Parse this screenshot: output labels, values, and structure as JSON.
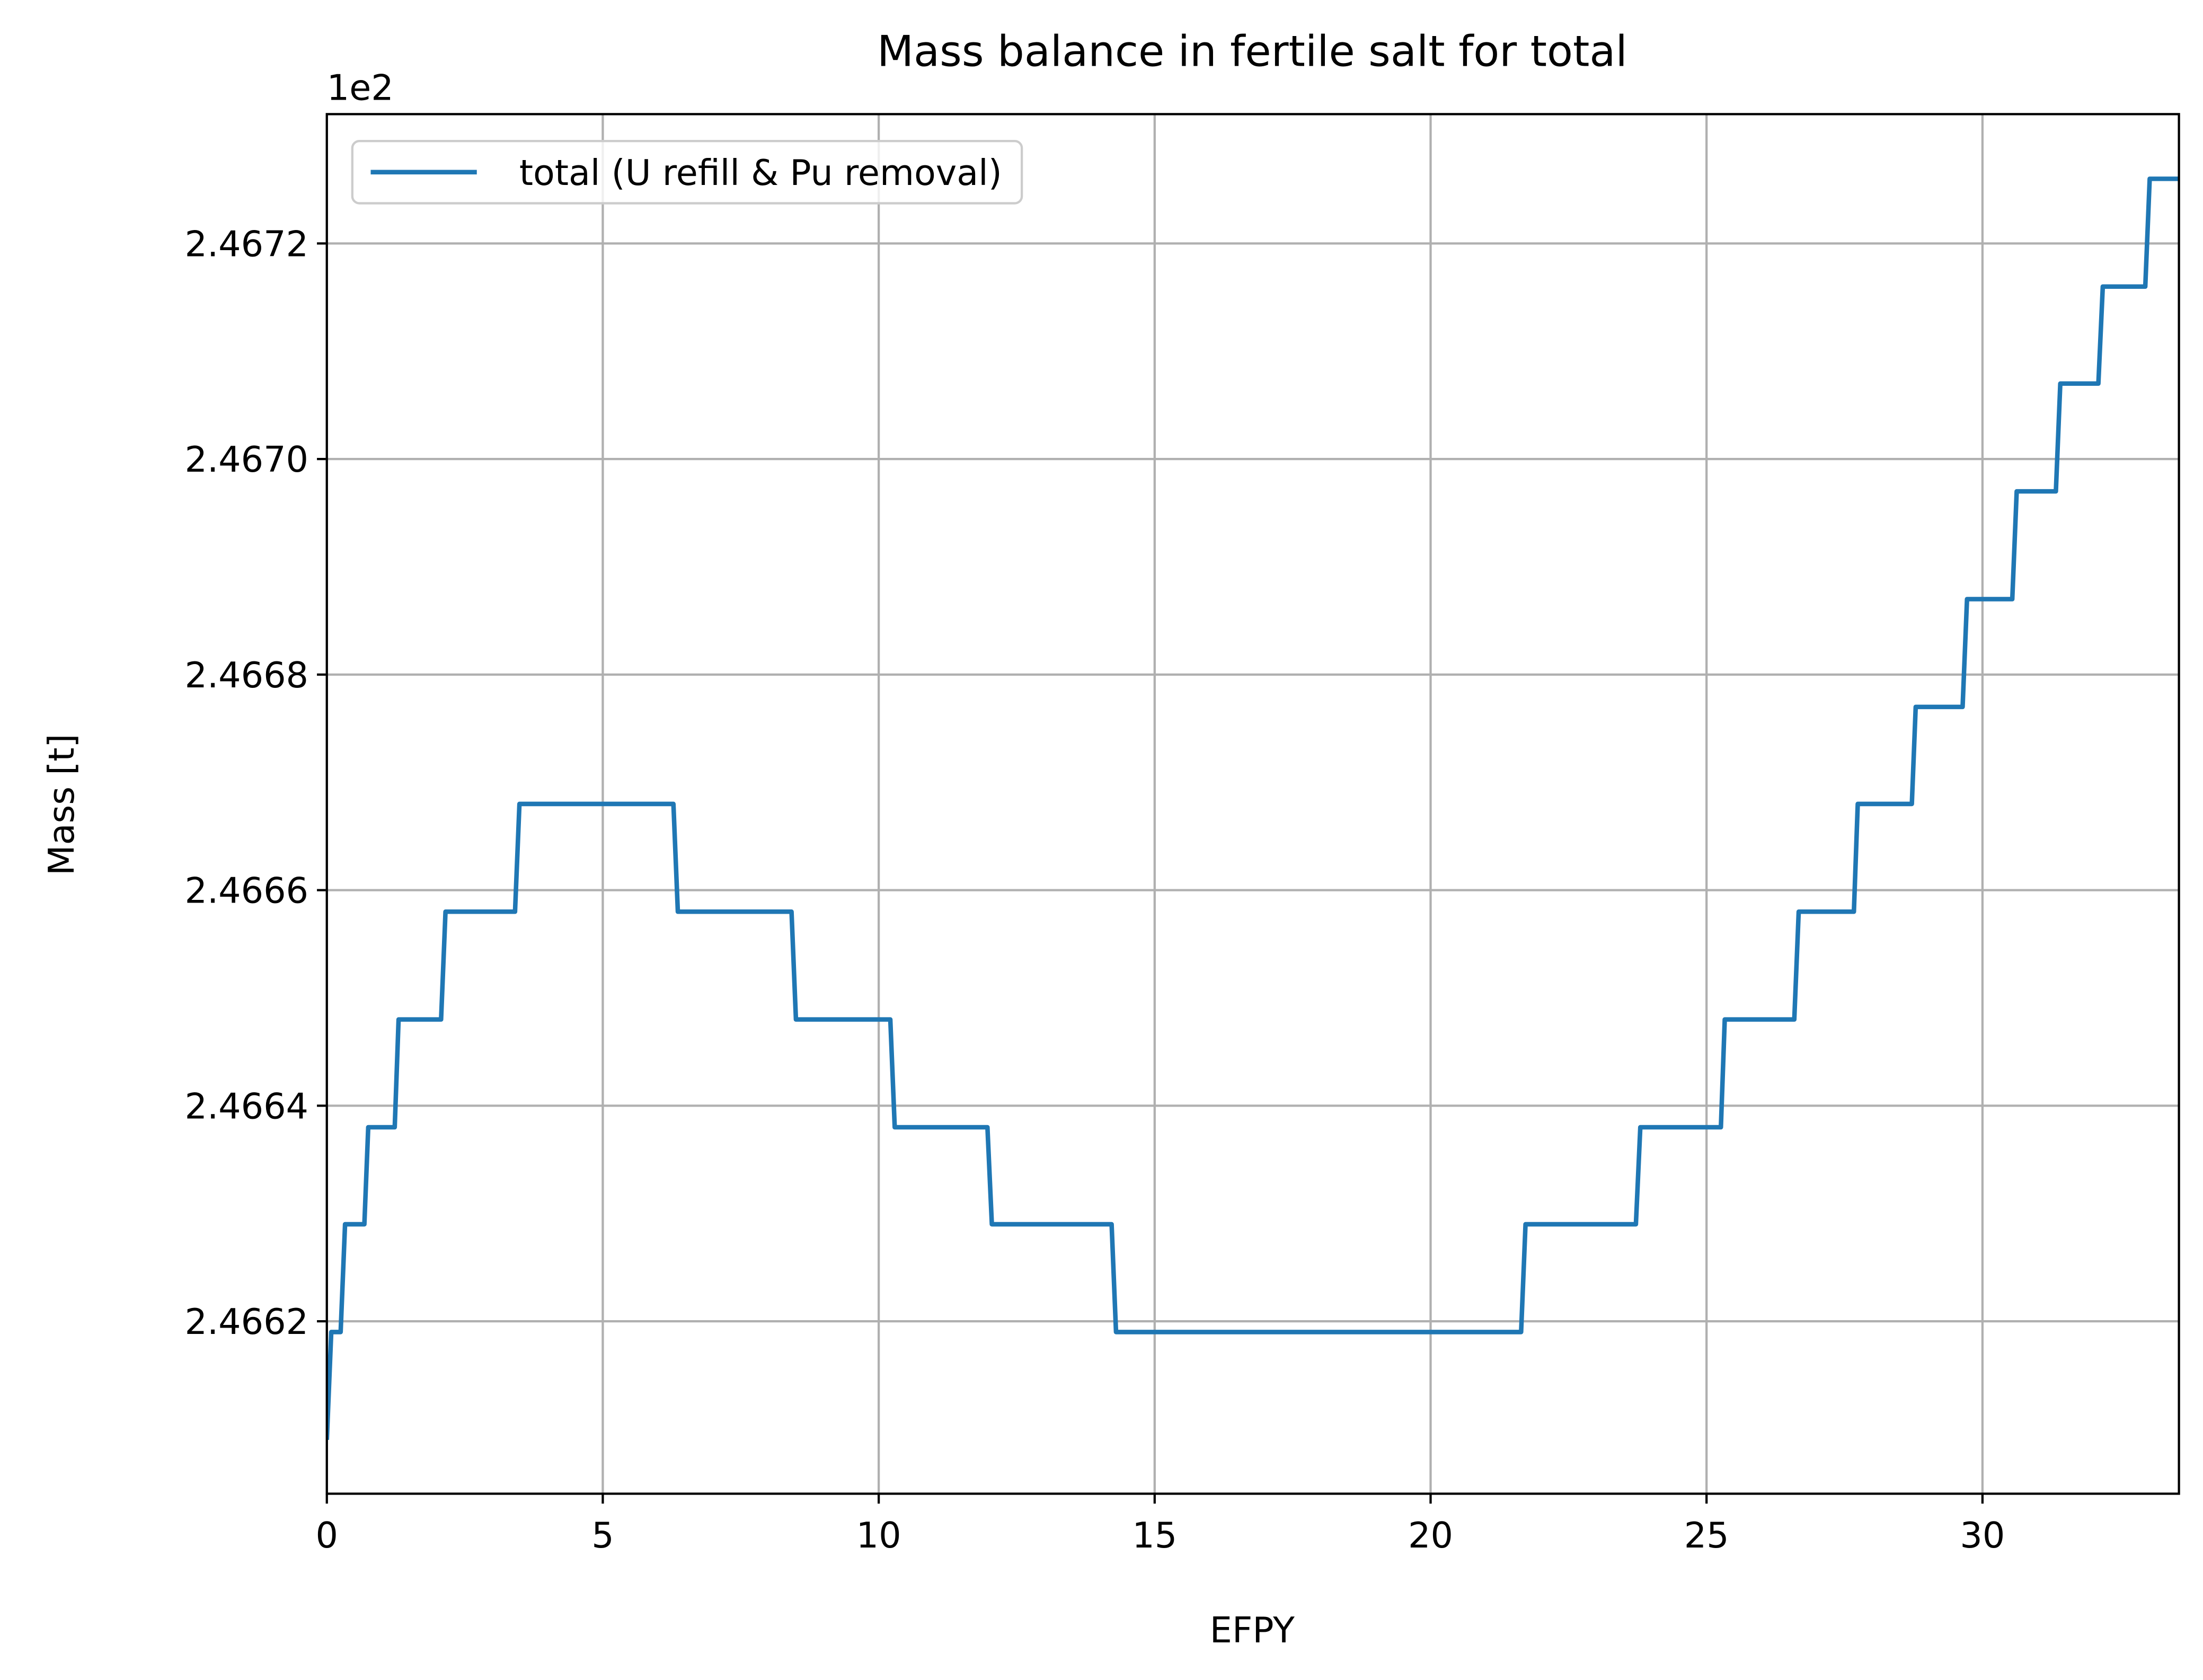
{
  "chart_data": {
    "type": "line",
    "title": "Mass balance in fertile salt for total",
    "x_label": "EFPY",
    "y_label": "Mass [t]",
    "y_offset_label": "1e2",
    "xlim": [
      0,
      33.56
    ],
    "ylim": [
      2.46604,
      2.46732
    ],
    "xticks": [
      0,
      5,
      10,
      15,
      20,
      25,
      30
    ],
    "yticks": [
      2.4662,
      2.4664,
      2.4666,
      2.4668,
      2.467,
      {
        "value": 2.467,
        "label": "2.4670"
      },
      2.4672
    ],
    "grid": true,
    "legend": "upper left",
    "x": [
      0,
      0.08,
      0.25,
      0.33,
      0.68,
      0.75,
      1.23,
      1.3,
      2.07,
      2.15,
      3.41,
      3.49,
      6.28,
      6.36,
      8.42,
      8.5,
      10.21,
      10.29,
      11.97,
      12.05,
      14.22,
      14.3,
      21.64,
      21.72,
      23.72,
      23.8,
      25.26,
      25.33,
      26.59,
      26.67,
      27.67,
      27.74,
      28.72,
      28.79,
      29.64,
      29.72,
      30.54,
      30.62,
      31.33,
      31.41,
      32.1,
      32.18,
      32.95,
      33.03,
      33.56
    ],
    "series": [
      {
        "name": "total (U refill & Pu removal)",
        "color": "#1f77b4",
        "values": [
          2.46609,
          2.46619,
          2.46619,
          2.46629,
          2.46629,
          2.46638,
          2.46638,
          2.46648,
          2.46648,
          2.46658,
          2.46658,
          2.46668,
          2.46668,
          2.46658,
          2.46658,
          2.46648,
          2.46648,
          2.46638,
          2.46638,
          2.46629,
          2.46629,
          2.46619,
          2.46619,
          2.46629,
          2.46629,
          2.46638,
          2.46638,
          2.46648,
          2.46648,
          2.46658,
          2.46658,
          2.46668,
          2.46668,
          2.46677,
          2.46677,
          2.46687,
          2.46687,
          2.46697,
          2.46697,
          2.46707,
          2.46707,
          2.46716,
          2.46716,
          2.46726,
          2.46726
        ]
      }
    ]
  }
}
